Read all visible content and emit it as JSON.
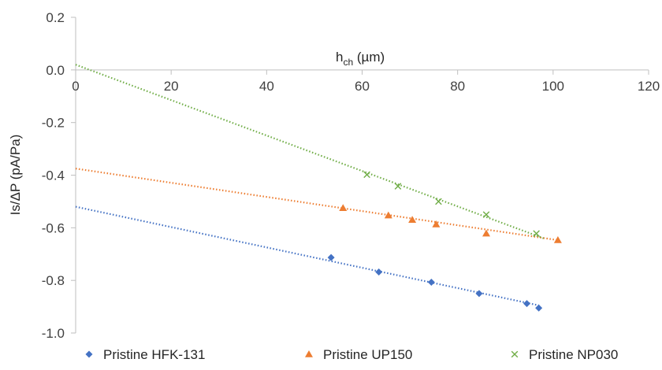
{
  "chart_data": {
    "type": "scatter",
    "title": "",
    "xlabel": {
      "main": "h",
      "sub": "ch",
      "unit": " (µm)"
    },
    "ylabel": "Is/ΔP (pA/Pa)",
    "xlim": [
      0,
      120
    ],
    "ylim": [
      -1.0,
      0.2
    ],
    "x_ticks": [
      0,
      20,
      40,
      60,
      80,
      100,
      120
    ],
    "x_tick_labels": [
      "0",
      "20",
      "40",
      "60",
      "80",
      "100",
      "120"
    ],
    "y_ticks": [
      0.2,
      0.0,
      -0.2,
      -0.4,
      -0.6,
      -0.8,
      -1.0
    ],
    "y_tick_labels": [
      "0.2",
      "0.0",
      "-0.2",
      "-0.4",
      "-0.6",
      "-0.8",
      "-1.0"
    ],
    "grid": false,
    "legend_position": "bottom",
    "series": [
      {
        "name": "Pristine HFK-131",
        "color": "#4472C4",
        "marker": "diamond",
        "x": [
          53.5,
          63.5,
          74.5,
          84.5,
          94.5,
          97
        ],
        "y": [
          -0.713,
          -0.768,
          -0.807,
          -0.85,
          -0.888,
          -0.905
        ],
        "trendline": {
          "x": [
            0,
            97
          ],
          "y": [
            -0.52,
            -0.895
          ]
        }
      },
      {
        "name": "Pristine UP150",
        "color": "#ED7D31",
        "marker": "triangle",
        "x": [
          56,
          65.5,
          70.5,
          75.5,
          86,
          101
        ],
        "y": [
          -0.525,
          -0.553,
          -0.57,
          -0.587,
          -0.622,
          -0.647
        ],
        "trendline": {
          "x": [
            0,
            101
          ],
          "y": [
            -0.375,
            -0.647
          ]
        }
      },
      {
        "name": "Pristine NP030",
        "color": "#70AD47",
        "marker": "x",
        "x": [
          61,
          67.5,
          76,
          86,
          96.5
        ],
        "y": [
          -0.398,
          -0.442,
          -0.5,
          -0.55,
          -0.622
        ],
        "trendline": {
          "x": [
            0,
            98
          ],
          "y": [
            0.02,
            -0.64
          ]
        }
      }
    ]
  }
}
